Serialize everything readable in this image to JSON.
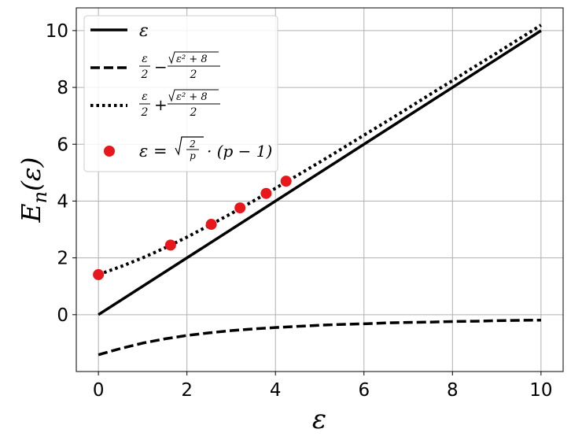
{
  "chart_data": {
    "type": "line",
    "xlabel": "ε",
    "ylabel": "E",
    "ylabel_sub": "n",
    "ylabel_arg": "(ε)",
    "xlim": [
      -0.5,
      10.5
    ],
    "ylim": [
      -2.0,
      10.8
    ],
    "xticks": [
      0,
      2,
      4,
      6,
      8,
      10
    ],
    "yticks": [
      0,
      2,
      4,
      6,
      8,
      10
    ],
    "grid": true,
    "legend_position": "upper-left",
    "series": [
      {
        "name": "ε",
        "style": "solid",
        "color": "#000000",
        "x": [
          0,
          10
        ],
        "y": [
          0,
          10
        ]
      },
      {
        "name": "ε/2 − √(ε²+8)/2",
        "style": "dashed",
        "color": "#000000",
        "x": [
          0,
          0.5,
          1,
          1.5,
          2,
          2.5,
          3,
          3.5,
          4,
          4.5,
          5,
          5.5,
          6,
          6.5,
          7,
          7.5,
          8,
          8.5,
          9,
          9.5,
          10
        ],
        "y": [
          -1.41,
          -1.19,
          -1.0,
          -0.85,
          -0.73,
          -0.64,
          -0.56,
          -0.5,
          -0.45,
          -0.41,
          -0.37,
          -0.34,
          -0.32,
          -0.29,
          -0.27,
          -0.26,
          -0.24,
          -0.23,
          -0.21,
          -0.2,
          -0.19
        ]
      },
      {
        "name": "ε/2 + √(ε²+8)/2",
        "style": "dotted",
        "color": "#000000",
        "x": [
          0,
          0.5,
          1,
          1.5,
          2,
          2.5,
          3,
          3.5,
          4,
          4.5,
          5,
          5.5,
          6,
          6.5,
          7,
          7.5,
          8,
          8.5,
          9,
          9.5,
          10
        ],
        "y": [
          1.41,
          1.69,
          2.0,
          2.35,
          2.73,
          3.14,
          3.56,
          4.0,
          4.45,
          4.91,
          5.37,
          5.84,
          6.32,
          6.79,
          7.27,
          7.76,
          8.24,
          8.73,
          9.21,
          9.7,
          10.19
        ]
      },
      {
        "name": "ε = √(2/p) · (p − 1)",
        "style": "scatter",
        "color": "#e8171b",
        "x": [
          0,
          1.63,
          2.55,
          3.2,
          3.79,
          4.24
        ],
        "y": [
          1.41,
          2.45,
          3.18,
          3.76,
          4.27,
          4.7
        ]
      }
    ],
    "legend": [
      {
        "label": "ε"
      },
      {
        "frac_num": "ε",
        "frac_den": "2",
        "op": "−",
        "sqrt_body": "ε² + 8",
        "sqrt_den": "2"
      },
      {
        "frac_num": "ε",
        "frac_den": "2",
        "op": "+",
        "sqrt_body": "ε² + 8",
        "sqrt_den": "2"
      },
      {
        "lhs": "ε =",
        "sqrt_num": "2",
        "sqrt_den": "p",
        "rest": "· (p − 1)"
      }
    ]
  }
}
